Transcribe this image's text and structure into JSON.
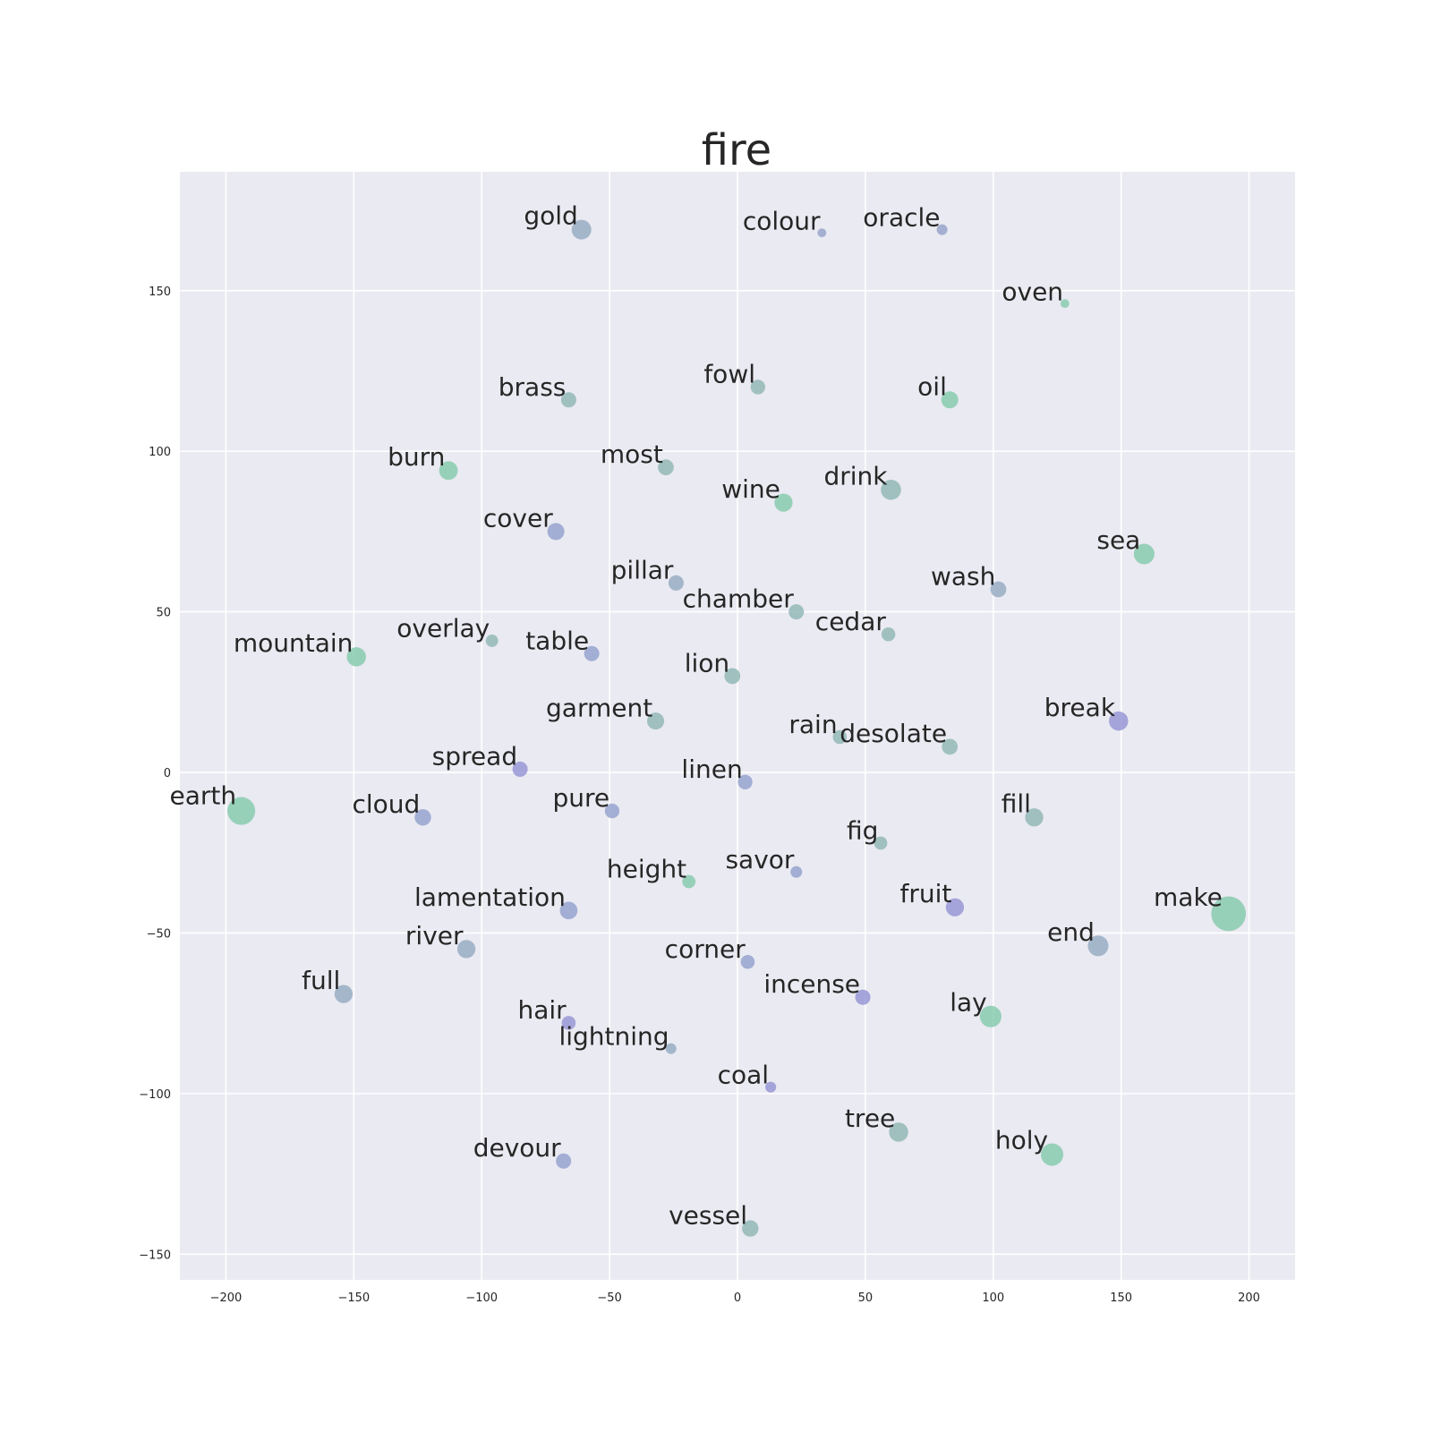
{
  "chart_data": {
    "type": "scatter",
    "title": "fire",
    "xlabel": "",
    "ylabel": "",
    "xlim": [
      -218,
      218
    ],
    "ylim": [
      -158,
      187
    ],
    "xticks": [
      -200,
      -150,
      -100,
      -50,
      0,
      50,
      100,
      150,
      200
    ],
    "yticks": [
      -150,
      -100,
      -50,
      0,
      50,
      100,
      150
    ],
    "grid": true,
    "colors": {
      "background": "#eaeaf2",
      "grid": "#ffffff",
      "text": "#262626",
      "palette": [
        "#7fc8a9",
        "#8ab3b2",
        "#8fa7bf",
        "#8e9ccc",
        "#8f8fd4"
      ]
    },
    "points": [
      {
        "label": "gold",
        "x": -61,
        "y": 169,
        "size": 1.0,
        "color": "#8fa7bf"
      },
      {
        "label": "colour",
        "x": 33,
        "y": 168,
        "size": 0.2,
        "color": "#8f9dc8"
      },
      {
        "label": "oracle",
        "x": 80,
        "y": 169,
        "size": 0.3,
        "color": "#8f9dc8"
      },
      {
        "label": "oven",
        "x": 128,
        "y": 146,
        "size": 0.2,
        "color": "#7fc8a9"
      },
      {
        "label": "brass",
        "x": -66,
        "y": 116,
        "size": 0.6,
        "color": "#8ab3b2"
      },
      {
        "label": "fowl",
        "x": 8,
        "y": 120,
        "size": 0.55,
        "color": "#8ab3b2"
      },
      {
        "label": "oil",
        "x": 83,
        "y": 116,
        "size": 0.75,
        "color": "#7fc8a9"
      },
      {
        "label": "burn",
        "x": -113,
        "y": 94,
        "size": 0.9,
        "color": "#7fc8a9"
      },
      {
        "label": "most",
        "x": -28,
        "y": 95,
        "size": 0.65,
        "color": "#8ab3b2"
      },
      {
        "label": "wine",
        "x": 18,
        "y": 84,
        "size": 0.85,
        "color": "#7fc8a9"
      },
      {
        "label": "drink",
        "x": 60,
        "y": 88,
        "size": 1.05,
        "color": "#8ab3b2"
      },
      {
        "label": "cover",
        "x": -71,
        "y": 75,
        "size": 0.75,
        "color": "#8e9ccc"
      },
      {
        "label": "sea",
        "x": 159,
        "y": 68,
        "size": 1.1,
        "color": "#7fc8a9"
      },
      {
        "label": "pillar",
        "x": -24,
        "y": 59,
        "size": 0.6,
        "color": "#8fa7bf"
      },
      {
        "label": "wash",
        "x": 102,
        "y": 57,
        "size": 0.65,
        "color": "#8fa7bf"
      },
      {
        "label": "chamber",
        "x": 23,
        "y": 50,
        "size": 0.6,
        "color": "#8ab3b2"
      },
      {
        "label": "cedar",
        "x": 59,
        "y": 43,
        "size": 0.5,
        "color": "#8ab3b2"
      },
      {
        "label": "mountain",
        "x": -149,
        "y": 36,
        "size": 0.95,
        "color": "#7fc8a9"
      },
      {
        "label": "overlay",
        "x": -96,
        "y": 41,
        "size": 0.4,
        "color": "#8ab3b2"
      },
      {
        "label": "table",
        "x": -57,
        "y": 37,
        "size": 0.6,
        "color": "#8e9ccc"
      },
      {
        "label": "lion",
        "x": -2,
        "y": 30,
        "size": 0.65,
        "color": "#8ab3b2"
      },
      {
        "label": "garment",
        "x": -32,
        "y": 16,
        "size": 0.75,
        "color": "#8ab3b2"
      },
      {
        "label": "rain",
        "x": 40,
        "y": 11,
        "size": 0.5,
        "color": "#8ab3b2"
      },
      {
        "label": "desolate",
        "x": 83,
        "y": 8,
        "size": 0.65,
        "color": "#8ab3b2"
      },
      {
        "label": "break",
        "x": 149,
        "y": 16,
        "size": 0.95,
        "color": "#8f8fd4"
      },
      {
        "label": "spread",
        "x": -85,
        "y": 1,
        "size": 0.6,
        "color": "#8f8fd4"
      },
      {
        "label": "linen",
        "x": 3,
        "y": -3,
        "size": 0.55,
        "color": "#8e9ccc"
      },
      {
        "label": "earth",
        "x": -194,
        "y": -12,
        "size": 2.0,
        "color": "#7fc8a9"
      },
      {
        "label": "cloud",
        "x": -123,
        "y": -14,
        "size": 0.7,
        "color": "#8e9ccc"
      },
      {
        "label": "pure",
        "x": -49,
        "y": -12,
        "size": 0.55,
        "color": "#8e9ccc"
      },
      {
        "label": "fill",
        "x": 116,
        "y": -14,
        "size": 0.85,
        "color": "#8ab3b2"
      },
      {
        "label": "fig",
        "x": 56,
        "y": -22,
        "size": 0.45,
        "color": "#8ab3b2"
      },
      {
        "label": "savor",
        "x": 23,
        "y": -31,
        "size": 0.35,
        "color": "#8e9ccc"
      },
      {
        "label": "height",
        "x": -19,
        "y": -34,
        "size": 0.45,
        "color": "#7fc8a9"
      },
      {
        "label": "lamentation",
        "x": -66,
        "y": -43,
        "size": 0.8,
        "color": "#8e9ccc"
      },
      {
        "label": "fruit",
        "x": 85,
        "y": -42,
        "size": 0.85,
        "color": "#8f8fd4"
      },
      {
        "label": "make",
        "x": 192,
        "y": -44,
        "size": 3.1,
        "color": "#7fc8a9"
      },
      {
        "label": "river",
        "x": -106,
        "y": -55,
        "size": 0.85,
        "color": "#8fa7bf"
      },
      {
        "label": "end",
        "x": 141,
        "y": -54,
        "size": 1.1,
        "color": "#8fa7bf"
      },
      {
        "label": "corner",
        "x": 4,
        "y": -59,
        "size": 0.5,
        "color": "#8e9ccc"
      },
      {
        "label": "full",
        "x": -154,
        "y": -69,
        "size": 0.85,
        "color": "#8fa7bf"
      },
      {
        "label": "incense",
        "x": 49,
        "y": -70,
        "size": 0.6,
        "color": "#8f8fd4"
      },
      {
        "label": "lay",
        "x": 99,
        "y": -76,
        "size": 1.2,
        "color": "#7fc8a9"
      },
      {
        "label": "hair",
        "x": -66,
        "y": -78,
        "size": 0.5,
        "color": "#8f8fd4"
      },
      {
        "label": "lightning",
        "x": -26,
        "y": -86,
        "size": 0.3,
        "color": "#8fa7bf"
      },
      {
        "label": "coal",
        "x": 13,
        "y": -98,
        "size": 0.3,
        "color": "#8f8fd4"
      },
      {
        "label": "tree",
        "x": 63,
        "y": -112,
        "size": 0.95,
        "color": "#8ab3b2"
      },
      {
        "label": "holy",
        "x": 123,
        "y": -119,
        "size": 1.3,
        "color": "#7fc8a9"
      },
      {
        "label": "devour",
        "x": -68,
        "y": -121,
        "size": 0.6,
        "color": "#8e9ccc"
      },
      {
        "label": "vessel",
        "x": 5,
        "y": -142,
        "size": 0.7,
        "color": "#8ab3b2"
      }
    ]
  }
}
